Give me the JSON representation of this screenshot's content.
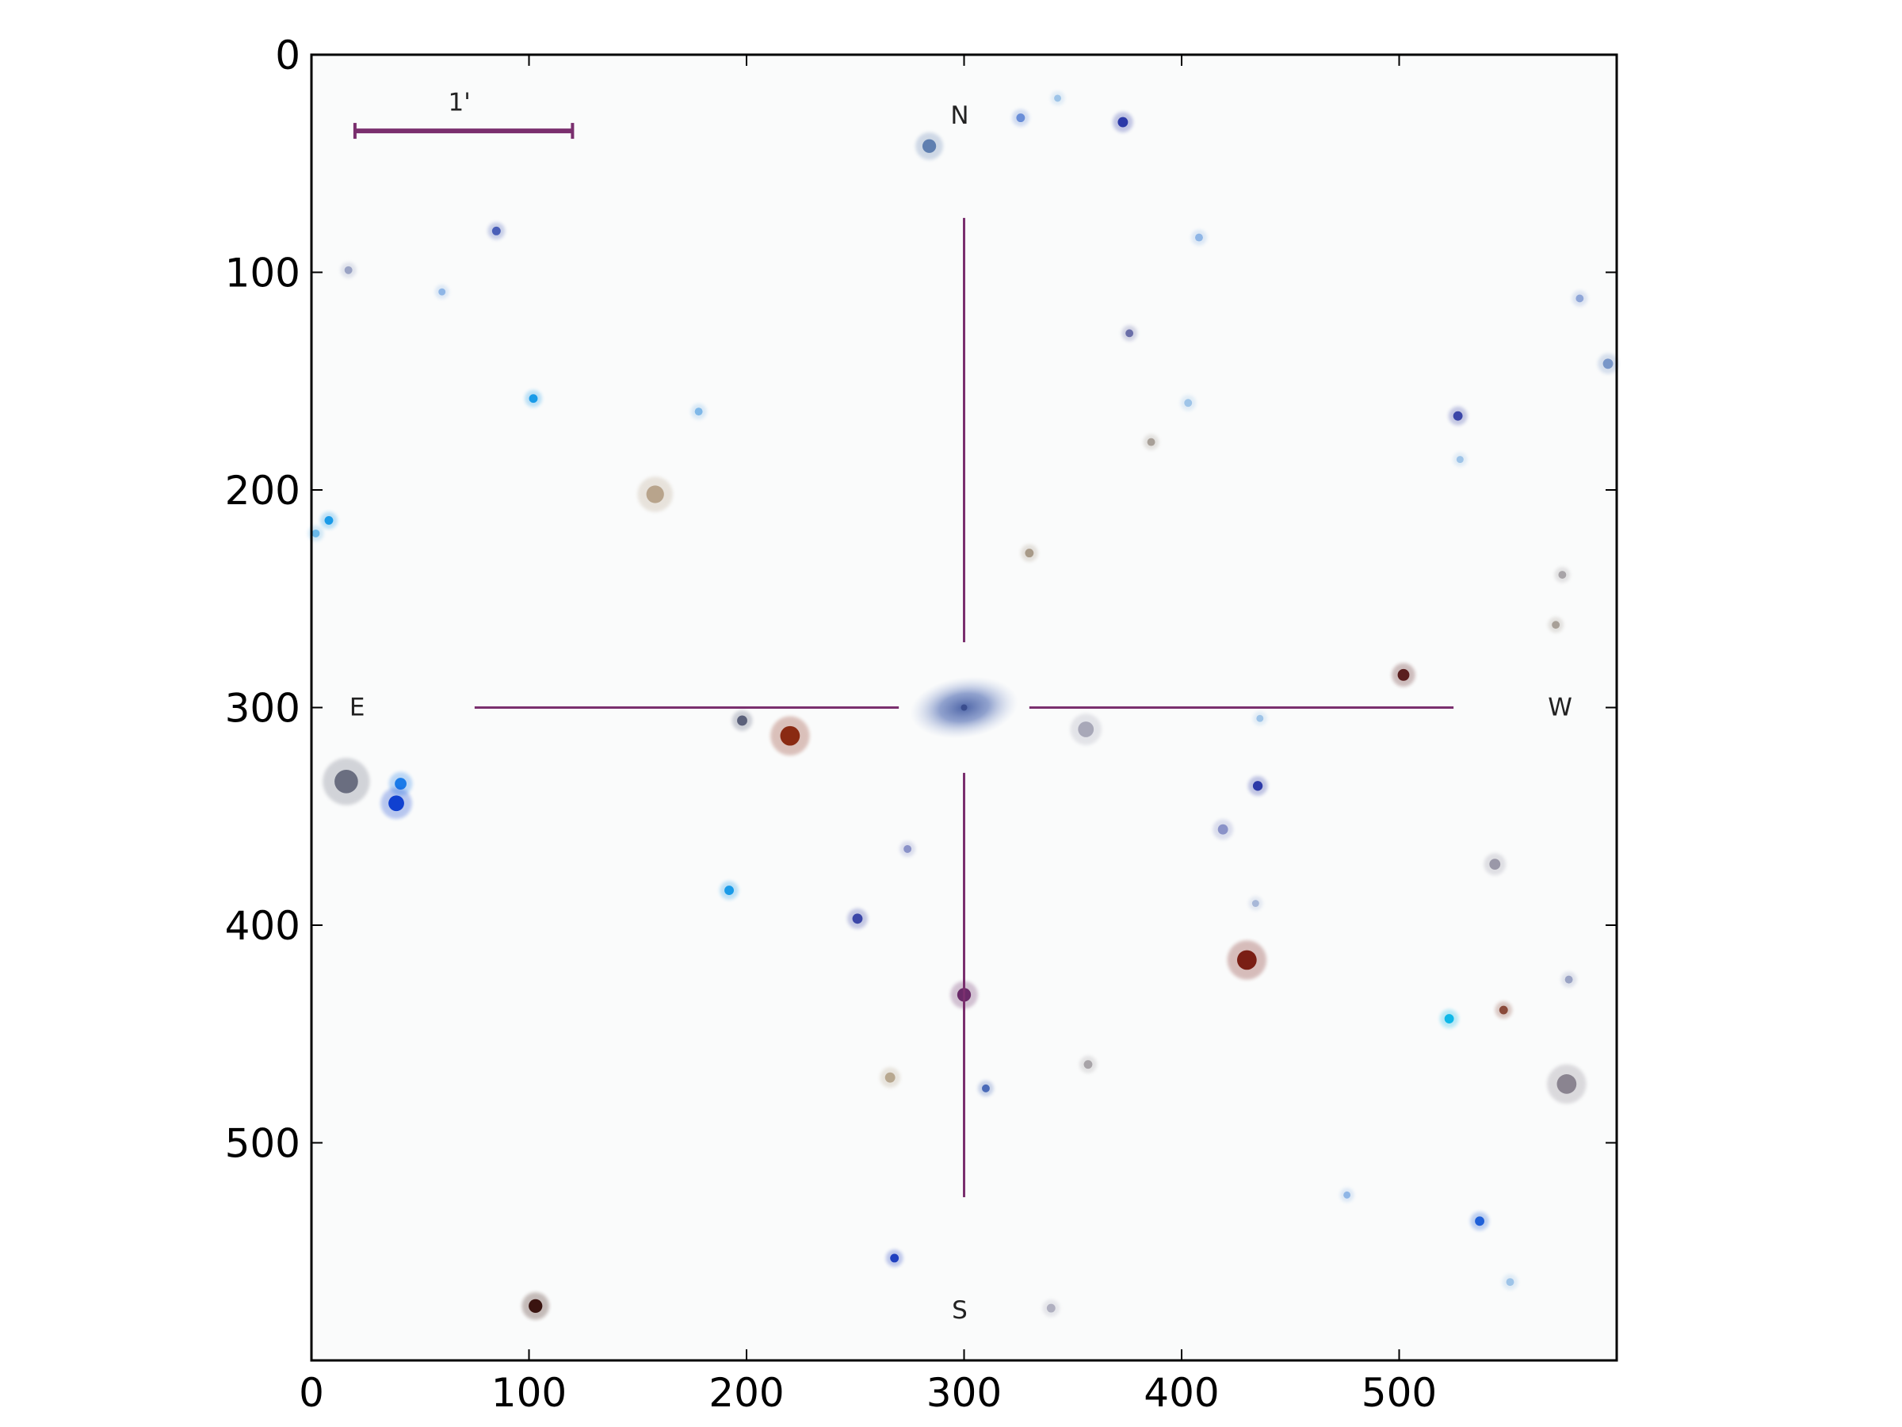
{
  "image": {
    "description_type": "sky-survey-cutout",
    "pixel_extent": [
      0,
      600
    ]
  },
  "axes": {
    "x_ticks": [
      0,
      100,
      200,
      300,
      400,
      500
    ],
    "y_ticks": [
      0,
      100,
      200,
      300,
      400,
      500
    ]
  },
  "overlay": {
    "north_label": "N",
    "south_label": "S",
    "east_label": "E",
    "west_label": "W",
    "scale_label": "1'",
    "scale_start": 20,
    "scale_end": 120,
    "scale_y": 35,
    "crosshair_center": [
      300,
      300
    ],
    "crosshair_inner_gap": 30,
    "crosshair_outer_h": 225,
    "crosshair_outer_v": 225
  },
  "colors": {
    "background": "#fafbfb",
    "overlay": "#7a2f6e",
    "galaxy": "#6f83b8",
    "frame": "#000000"
  },
  "target": {
    "x": 300,
    "y": 300,
    "rx": 25,
    "ry": 14
  },
  "stars": [
    {
      "x": 284,
      "y": 42,
      "r": 3.5,
      "color": "#5f7fb0"
    },
    {
      "x": 326,
      "y": 29,
      "r": 2.2,
      "color": "#6a8ed8"
    },
    {
      "x": 373,
      "y": 31,
      "r": 2.6,
      "color": "#2d3aa8"
    },
    {
      "x": 85,
      "y": 81,
      "r": 2.2,
      "color": "#4a5fb8"
    },
    {
      "x": 408,
      "y": 84,
      "r": 2,
      "color": "#8fb6e6"
    },
    {
      "x": 17,
      "y": 99,
      "r": 2,
      "color": "#9aa3c4"
    },
    {
      "x": 376,
      "y": 128,
      "r": 2,
      "color": "#6a6ea8"
    },
    {
      "x": 102,
      "y": 158,
      "r": 2.2,
      "color": "#1a9be8"
    },
    {
      "x": 178,
      "y": 164,
      "r": 2,
      "color": "#7fb8e8"
    },
    {
      "x": 527,
      "y": 166,
      "r": 2.4,
      "color": "#3c47a8"
    },
    {
      "x": 596,
      "y": 142,
      "r": 2.6,
      "color": "#7896c8"
    },
    {
      "x": 158,
      "y": 202,
      "r": 4.5,
      "color": "#b8a48c"
    },
    {
      "x": 8,
      "y": 214,
      "r": 2.2,
      "color": "#1a9be8"
    },
    {
      "x": 2,
      "y": 220,
      "r": 2,
      "color": "#6ab8e8"
    },
    {
      "x": 330,
      "y": 229,
      "r": 2.2,
      "color": "#a89a88"
    },
    {
      "x": 502,
      "y": 285,
      "r": 3,
      "color": "#5a1e1e"
    },
    {
      "x": 198,
      "y": 306,
      "r": 2.6,
      "color": "#5a607a"
    },
    {
      "x": 220,
      "y": 313,
      "r": 5,
      "color": "#8a2a12"
    },
    {
      "x": 356,
      "y": 310,
      "r": 4,
      "color": "#a8a8b8"
    },
    {
      "x": 16,
      "y": 334,
      "r": 6,
      "color": "#6a6e80"
    },
    {
      "x": 41,
      "y": 335,
      "r": 3,
      "color": "#1a7be8"
    },
    {
      "x": 39,
      "y": 344,
      "r": 4,
      "color": "#1040d0"
    },
    {
      "x": 435,
      "y": 336,
      "r": 2.5,
      "color": "#2d3aa8"
    },
    {
      "x": 419,
      "y": 356,
      "r": 2.6,
      "color": "#8a92c8"
    },
    {
      "x": 274,
      "y": 365,
      "r": 2,
      "color": "#8a92c8"
    },
    {
      "x": 192,
      "y": 384,
      "r": 2.4,
      "color": "#1a9be8"
    },
    {
      "x": 251,
      "y": 397,
      "r": 2.6,
      "color": "#3c47a8"
    },
    {
      "x": 544,
      "y": 372,
      "r": 2.8,
      "color": "#9a98a8"
    },
    {
      "x": 430,
      "y": 416,
      "r": 5,
      "color": "#7a1e14"
    },
    {
      "x": 300,
      "y": 432,
      "r": 3.5,
      "color": "#6a2a68"
    },
    {
      "x": 548,
      "y": 439,
      "r": 2.2,
      "color": "#8a4a3a"
    },
    {
      "x": 523,
      "y": 443,
      "r": 2.4,
      "color": "#10b8e8"
    },
    {
      "x": 357,
      "y": 464,
      "r": 2.2,
      "color": "#a8a4a8"
    },
    {
      "x": 266,
      "y": 470,
      "r": 2.6,
      "color": "#b8a890"
    },
    {
      "x": 310,
      "y": 475,
      "r": 2,
      "color": "#4a6ab8"
    },
    {
      "x": 577,
      "y": 473,
      "r": 5,
      "color": "#8a8490"
    },
    {
      "x": 537,
      "y": 536,
      "r": 2.4,
      "color": "#2060d8"
    },
    {
      "x": 268,
      "y": 553,
      "r": 2.2,
      "color": "#2040c0"
    },
    {
      "x": 103,
      "y": 575,
      "r": 3.5,
      "color": "#3a1410"
    },
    {
      "x": 340,
      "y": 576,
      "r": 2.2,
      "color": "#b0b0c0"
    },
    {
      "x": 551,
      "y": 564,
      "r": 2,
      "color": "#9ec4e8"
    },
    {
      "x": 578,
      "y": 425,
      "r": 2,
      "color": "#9aa3c4"
    },
    {
      "x": 583,
      "y": 112,
      "r": 2,
      "color": "#8fa6d8"
    },
    {
      "x": 575,
      "y": 239,
      "r": 2,
      "color": "#a8a4a8"
    },
    {
      "x": 572,
      "y": 262,
      "r": 2,
      "color": "#a8a098"
    },
    {
      "x": 403,
      "y": 160,
      "r": 2,
      "color": "#9ec4e8"
    },
    {
      "x": 386,
      "y": 178,
      "r": 2,
      "color": "#a8a098"
    },
    {
      "x": 60,
      "y": 109,
      "r": 1.8,
      "color": "#8fb6e6"
    },
    {
      "x": 434,
      "y": 390,
      "r": 1.8,
      "color": "#a8b8d8"
    },
    {
      "x": 476,
      "y": 524,
      "r": 1.8,
      "color": "#8fb6e6"
    },
    {
      "x": 343,
      "y": 20,
      "r": 1.8,
      "color": "#9ec4e8"
    },
    {
      "x": 436,
      "y": 305,
      "r": 1.8,
      "color": "#9ec4e8"
    },
    {
      "x": 528,
      "y": 186,
      "r": 1.8,
      "color": "#9ec4e8"
    }
  ]
}
